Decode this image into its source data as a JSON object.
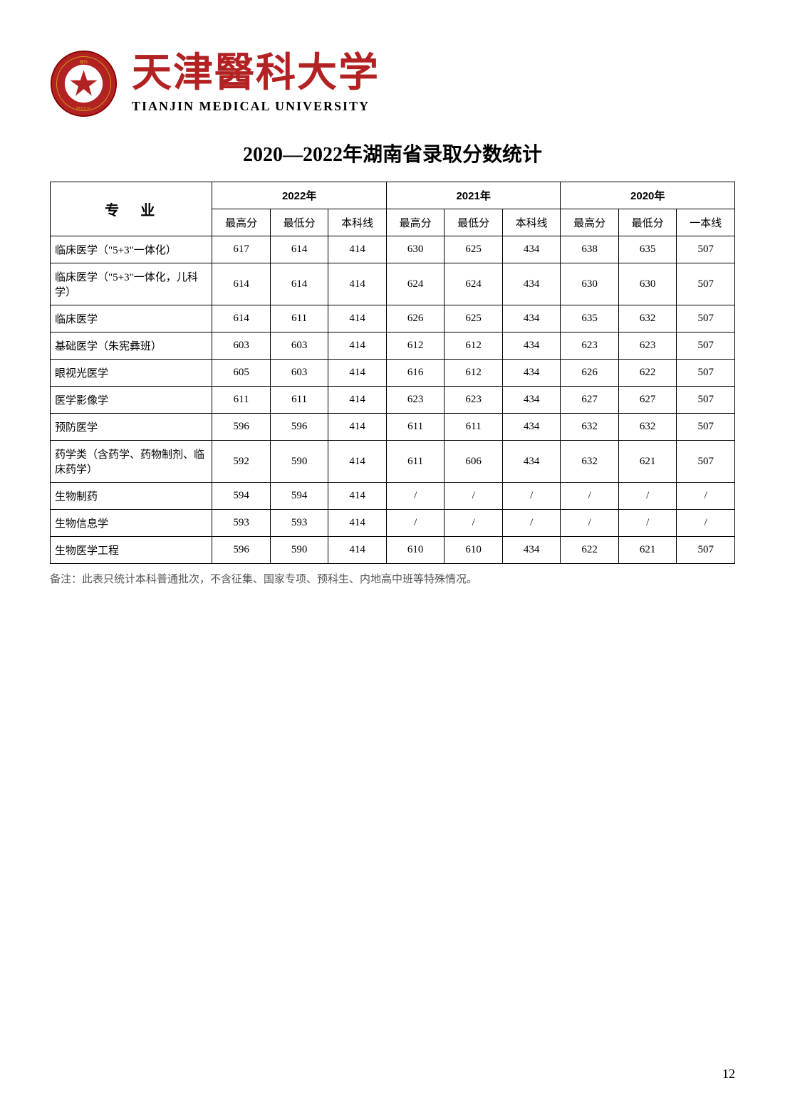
{
  "header": {
    "universityNameCn": "天津醫科大学",
    "universityNameEn": "TIANJIN MEDICAL UNIVERSITY",
    "logoColors": {
      "outer": "#8b0000",
      "inner": "#b22222",
      "gold": "#d4a017"
    }
  },
  "title": "2020—2022年湖南省录取分数统计",
  "table": {
    "majorHeader": "专业",
    "years": [
      "2022年",
      "2021年",
      "2020年"
    ],
    "subHeaders": [
      "最高分",
      "最低分",
      "本科线",
      "最高分",
      "最低分",
      "本科线",
      "最高分",
      "最低分",
      "一本线"
    ],
    "rows": [
      {
        "major": "临床医学（\"5+3\"一体化）",
        "values": [
          "617",
          "614",
          "414",
          "630",
          "625",
          "434",
          "638",
          "635",
          "507"
        ]
      },
      {
        "major": "临床医学（\"5+3\"一体化，儿科学）",
        "values": [
          "614",
          "614",
          "414",
          "624",
          "624",
          "434",
          "630",
          "630",
          "507"
        ]
      },
      {
        "major": "临床医学",
        "values": [
          "614",
          "611",
          "414",
          "626",
          "625",
          "434",
          "635",
          "632",
          "507"
        ]
      },
      {
        "major": "基础医学（朱宪彝班）",
        "values": [
          "603",
          "603",
          "414",
          "612",
          "612",
          "434",
          "623",
          "623",
          "507"
        ]
      },
      {
        "major": "眼视光医学",
        "values": [
          "605",
          "603",
          "414",
          "616",
          "612",
          "434",
          "626",
          "622",
          "507"
        ]
      },
      {
        "major": "医学影像学",
        "values": [
          "611",
          "611",
          "414",
          "623",
          "623",
          "434",
          "627",
          "627",
          "507"
        ]
      },
      {
        "major": "预防医学",
        "values": [
          "596",
          "596",
          "414",
          "611",
          "611",
          "434",
          "632",
          "632",
          "507"
        ]
      },
      {
        "major": "药学类（含药学、药物制剂、临床药学）",
        "values": [
          "592",
          "590",
          "414",
          "611",
          "606",
          "434",
          "632",
          "621",
          "507"
        ]
      },
      {
        "major": "生物制药",
        "values": [
          "594",
          "594",
          "414",
          "/",
          "/",
          "/",
          "/",
          "/",
          "/"
        ]
      },
      {
        "major": "生物信息学",
        "values": [
          "593",
          "593",
          "414",
          "/",
          "/",
          "/",
          "/",
          "/",
          "/"
        ]
      },
      {
        "major": "生物医学工程",
        "values": [
          "596",
          "590",
          "414",
          "610",
          "610",
          "434",
          "622",
          "621",
          "507"
        ]
      }
    ]
  },
  "note": "备注：此表只统计本科普通批次，不含征集、国家专项、预科生、内地高中班等特殊情况。",
  "pageNumber": "12"
}
